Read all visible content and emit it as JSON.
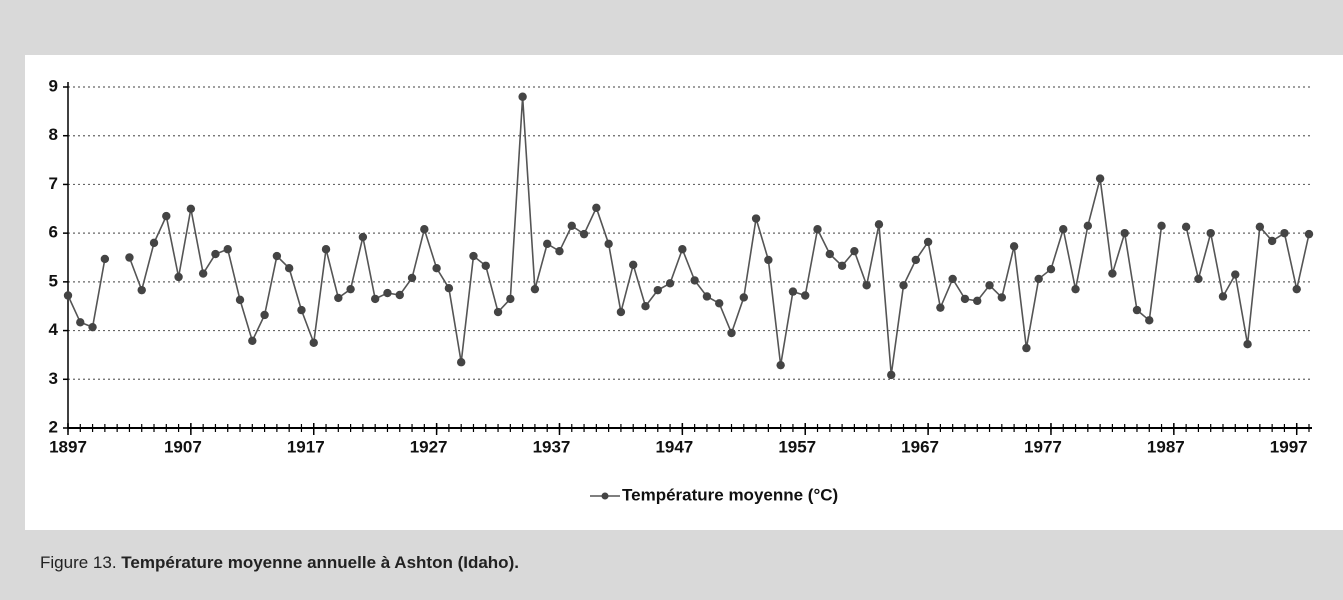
{
  "chart_data": {
    "type": "line",
    "x": [
      1897,
      1898,
      1899,
      1900,
      1901,
      1902,
      1903,
      1904,
      1905,
      1906,
      1907,
      1908,
      1909,
      1910,
      1911,
      1912,
      1913,
      1914,
      1915,
      1916,
      1917,
      1918,
      1919,
      1920,
      1921,
      1922,
      1923,
      1924,
      1925,
      1926,
      1927,
      1928,
      1929,
      1930,
      1931,
      1932,
      1933,
      1934,
      1935,
      1936,
      1937,
      1938,
      1939,
      1940,
      1941,
      1942,
      1943,
      1944,
      1945,
      1946,
      1947,
      1948,
      1949,
      1950,
      1951,
      1952,
      1953,
      1954,
      1955,
      1956,
      1957,
      1958,
      1959,
      1960,
      1961,
      1962,
      1963,
      1964,
      1965,
      1966,
      1967,
      1968,
      1969,
      1970,
      1971,
      1972,
      1973,
      1974,
      1975,
      1976,
      1977,
      1978,
      1979,
      1980,
      1981,
      1982,
      1983,
      1984,
      1985,
      1986,
      1987,
      1988,
      1989,
      1990,
      1991,
      1992,
      1993,
      1994,
      1995,
      1996,
      1997,
      1998
    ],
    "series": [
      {
        "name": "Température moyenne (°C)",
        "color": "#555555",
        "marker_color": "#444444",
        "values": [
          4.72,
          4.17,
          4.07,
          5.47,
          null,
          5.5,
          4.83,
          5.8,
          6.35,
          5.1,
          6.5,
          5.17,
          5.57,
          5.67,
          4.63,
          3.79,
          4.32,
          5.53,
          5.28,
          4.42,
          3.75,
          5.67,
          4.67,
          4.85,
          5.92,
          4.65,
          4.77,
          4.73,
          5.08,
          6.08,
          5.28,
          4.87,
          3.35,
          5.53,
          5.33,
          4.38,
          4.65,
          8.8,
          4.85,
          5.78,
          5.63,
          6.15,
          5.98,
          6.52,
          5.78,
          4.38,
          5.35,
          4.5,
          4.83,
          4.97,
          5.67,
          5.03,
          4.7,
          4.56,
          3.95,
          4.68,
          6.3,
          5.45,
          3.29,
          4.8,
          4.72,
          6.08,
          5.57,
          5.33,
          5.63,
          4.93,
          6.18,
          3.09,
          4.93,
          5.45,
          5.82,
          4.47,
          5.06,
          4.65,
          4.61,
          4.93,
          4.68,
          5.73,
          3.64,
          5.06,
          5.26,
          6.08,
          4.85,
          6.15,
          7.12,
          5.17,
          6.0,
          4.42,
          4.21,
          6.15,
          null,
          6.13,
          5.06,
          6.0,
          4.7,
          5.15,
          3.72,
          6.13,
          5.84,
          6.0,
          4.85,
          5.98
        ]
      }
    ],
    "xlim": [
      1897,
      1998
    ],
    "xticks": [
      1897,
      1907,
      1917,
      1927,
      1937,
      1947,
      1957,
      1967,
      1977,
      1987,
      1997
    ],
    "ylim": [
      2,
      9
    ],
    "yticks": [
      2,
      3,
      4,
      5,
      6,
      7,
      8,
      9
    ],
    "grid": true,
    "legend": "bottom"
  },
  "figure": {
    "label": "Figure 13.",
    "title": "Température moyenne annuelle à Ashton (Idaho)."
  }
}
